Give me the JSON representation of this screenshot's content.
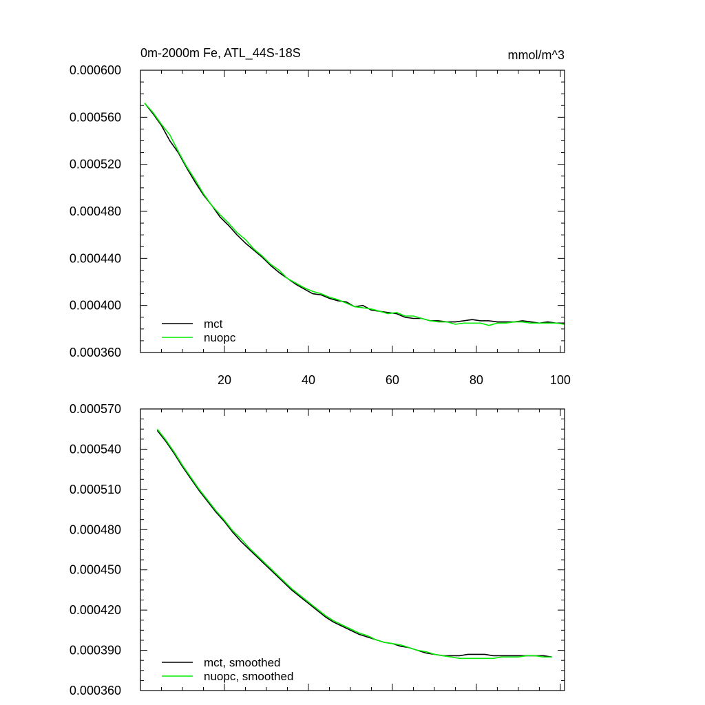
{
  "colors": {
    "mct": "#000000",
    "nuopc": "#00ee00"
  },
  "chart_data": [
    {
      "type": "line",
      "title": "0m-2000m Fe, ATL_44S-18S",
      "units_label": "mmol/m^3",
      "xlabel": "",
      "ylabel": "",
      "xlim": [
        0,
        101
      ],
      "ylim": [
        0.00036,
        0.0006
      ],
      "xticks": [
        20,
        40,
        60,
        80,
        100
      ],
      "xtick_labels": [
        "20",
        "40",
        "60",
        "80",
        "100"
      ],
      "yticks": [
        0.00036,
        0.0004,
        0.00044,
        0.00048,
        0.00052,
        0.00056,
        0.0006
      ],
      "ytick_labels": [
        "0.000360",
        "0.000400",
        "0.000440",
        "0.000480",
        "0.000520",
        "0.000560",
        "0.000600"
      ],
      "grid": false,
      "legend_position": "bottom-left",
      "series": [
        {
          "name": "mct",
          "x": [
            1,
            3,
            5,
            7,
            9,
            11,
            13,
            15,
            17,
            19,
            21,
            23,
            25,
            27,
            29,
            31,
            33,
            35,
            37,
            39,
            41,
            43,
            45,
            47,
            49,
            51,
            53,
            55,
            57,
            59,
            61,
            63,
            65,
            67,
            69,
            71,
            73,
            75,
            77,
            79,
            81,
            83,
            85,
            87,
            89,
            91,
            93,
            95,
            97,
            99,
            101
          ],
          "values": [
            0.000572,
            0.000563,
            0.000553,
            0.00054,
            0.00053,
            0.000517,
            0.000505,
            0.000494,
            0.000485,
            0.000475,
            0.000468,
            0.00046,
            0.000453,
            0.000447,
            0.000441,
            0.000434,
            0.000428,
            0.000423,
            0.000418,
            0.000414,
            0.00041,
            0.000409,
            0.000406,
            0.000404,
            0.000403,
            0.000399,
            0.0004,
            0.000396,
            0.000395,
            0.000394,
            0.000393,
            0.00039,
            0.000389,
            0.000389,
            0.000387,
            0.000387,
            0.000386,
            0.000386,
            0.000387,
            0.000388,
            0.000387,
            0.000387,
            0.000386,
            0.000386,
            0.000386,
            0.000387,
            0.000386,
            0.000385,
            0.000386,
            0.000385,
            0.000385
          ]
        },
        {
          "name": "nuopc",
          "x": [
            1,
            3,
            5,
            7,
            9,
            11,
            13,
            15,
            17,
            19,
            21,
            23,
            25,
            27,
            29,
            31,
            33,
            35,
            37,
            39,
            41,
            43,
            45,
            47,
            49,
            51,
            53,
            55,
            57,
            59,
            61,
            63,
            65,
            67,
            69,
            71,
            73,
            75,
            77,
            79,
            81,
            83,
            85,
            87,
            89,
            91,
            93,
            95,
            97,
            99,
            101
          ],
          "values": [
            0.000572,
            0.000564,
            0.000554,
            0.000545,
            0.000531,
            0.000518,
            0.000507,
            0.000495,
            0.000485,
            0.000477,
            0.00047,
            0.000462,
            0.000456,
            0.000448,
            0.000442,
            0.000435,
            0.00043,
            0.000423,
            0.000419,
            0.000415,
            0.000412,
            0.00041,
            0.000407,
            0.000405,
            0.000402,
            0.000399,
            0.000398,
            0.000397,
            0.000395,
            0.000393,
            0.000394,
            0.000391,
            0.000391,
            0.000389,
            0.000387,
            0.000386,
            0.000386,
            0.000384,
            0.000385,
            0.000385,
            0.000385,
            0.000383,
            0.000385,
            0.000385,
            0.000386,
            0.000386,
            0.000385,
            0.000385,
            0.000385,
            0.000385,
            0.000384
          ]
        }
      ]
    },
    {
      "type": "line",
      "title": "",
      "xlabel": "",
      "ylabel": "",
      "xlim": [
        0,
        101
      ],
      "ylim": [
        0.00036,
        0.00057
      ],
      "xticks": [
        20,
        40,
        60,
        80,
        100
      ],
      "xtick_labels": [],
      "yticks": [
        0.00036,
        0.00039,
        0.00042,
        0.00045,
        0.00048,
        0.00051,
        0.00054,
        0.00057
      ],
      "ytick_labels": [
        "0.000360",
        "0.000390",
        "0.000420",
        "0.000450",
        "0.000480",
        "0.000510",
        "0.000540",
        "0.000570"
      ],
      "grid": false,
      "legend_position": "bottom-left",
      "series": [
        {
          "name": "mct, smoothed",
          "x": [
            4,
            6,
            8,
            10,
            12,
            14,
            16,
            18,
            20,
            22,
            24,
            26,
            28,
            30,
            32,
            34,
            36,
            38,
            40,
            42,
            44,
            46,
            48,
            50,
            52,
            54,
            56,
            58,
            60,
            62,
            64,
            66,
            68,
            70,
            72,
            74,
            76,
            78,
            80,
            82,
            84,
            86,
            88,
            90,
            92,
            94,
            96,
            98
          ],
          "values": [
            0.000554,
            0.000546,
            0.000537,
            0.000527,
            0.000518,
            0.000509,
            0.000501,
            0.000493,
            0.000486,
            0.000478,
            0.000471,
            0.000465,
            0.000459,
            0.000453,
            0.000447,
            0.000441,
            0.000435,
            0.00043,
            0.000425,
            0.00042,
            0.000415,
            0.000411,
            0.000408,
            0.000405,
            0.000402,
            0.0004,
            0.000398,
            0.000396,
            0.000395,
            0.000393,
            0.000392,
            0.00039,
            0.000388,
            0.000387,
            0.000386,
            0.000386,
            0.000386,
            0.000387,
            0.000387,
            0.000387,
            0.000386,
            0.000386,
            0.000386,
            0.000386,
            0.000386,
            0.000386,
            0.000386,
            0.000385
          ]
        },
        {
          "name": "nuopc, smoothed",
          "x": [
            4,
            6,
            8,
            10,
            12,
            14,
            16,
            18,
            20,
            22,
            24,
            26,
            28,
            30,
            32,
            34,
            36,
            38,
            40,
            42,
            44,
            46,
            48,
            50,
            52,
            54,
            56,
            58,
            60,
            62,
            64,
            66,
            68,
            70,
            72,
            74,
            76,
            78,
            80,
            82,
            84,
            86,
            88,
            90,
            92,
            94,
            96,
            98
          ],
          "values": [
            0.000555,
            0.000547,
            0.000538,
            0.000528,
            0.000519,
            0.00051,
            0.000502,
            0.000494,
            0.000487,
            0.000479,
            0.000473,
            0.000466,
            0.00046,
            0.000454,
            0.000448,
            0.000442,
            0.000436,
            0.000431,
            0.000426,
            0.000421,
            0.000416,
            0.000412,
            0.000409,
            0.000406,
            0.000403,
            0.000401,
            0.000398,
            0.000396,
            0.000395,
            0.000394,
            0.000392,
            0.00039,
            0.000389,
            0.000387,
            0.000386,
            0.000385,
            0.000384,
            0.000384,
            0.000384,
            0.000384,
            0.000384,
            0.000385,
            0.000385,
            0.000385,
            0.000386,
            0.000386,
            0.000385,
            0.000385
          ]
        }
      ]
    }
  ]
}
